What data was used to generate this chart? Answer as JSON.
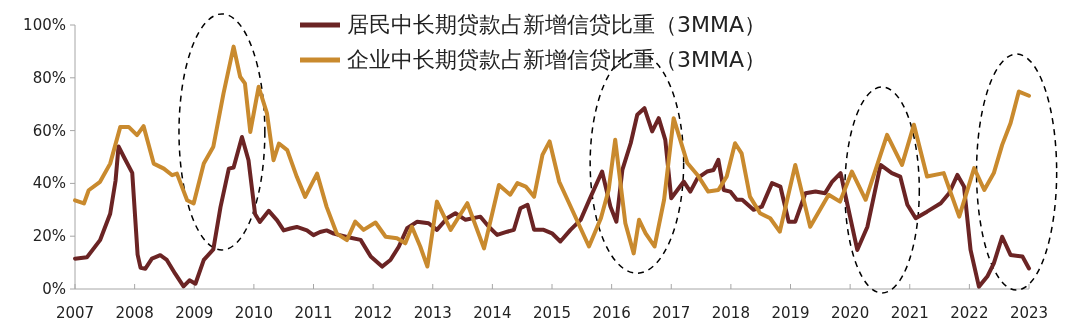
{
  "chart_data": {
    "type": "line",
    "xlim": [
      2007,
      2023
    ],
    "xticks": [
      2007,
      2008,
      2009,
      2010,
      2011,
      2012,
      2013,
      2014,
      2015,
      2016,
      2017,
      2018,
      2019,
      2020,
      2021,
      2022,
      2023
    ],
    "ylim": [
      0,
      100
    ],
    "yticks": [
      {
        "value": 0,
        "label": "0%"
      },
      {
        "value": 20,
        "label": "20%"
      },
      {
        "value": 40,
        "label": "40%"
      },
      {
        "value": 60,
        "label": "60%"
      },
      {
        "value": 80,
        "label": "80%"
      },
      {
        "value": 100,
        "label": "100%"
      }
    ],
    "legend": "top",
    "grid": false,
    "marker": "none",
    "line_style": "solid",
    "series": [
      {
        "name": "居民中长期贷款占新增信贷比重（3MMA）",
        "color": "#6b2424",
        "x": [
          2007.0,
          2007.2,
          2007.42,
          2007.59,
          2007.68,
          2007.73,
          2007.82,
          2007.96,
          2008.05,
          2008.1,
          2008.18,
          2008.29,
          2008.43,
          2008.54,
          2008.68,
          2008.82,
          2008.92,
          2009.02,
          2009.16,
          2009.32,
          2009.44,
          2009.58,
          2009.66,
          2009.8,
          2009.91,
          2010.02,
          2010.1,
          2010.25,
          2010.39,
          2010.5,
          2010.61,
          2010.72,
          2010.89,
          2011.0,
          2011.11,
          2011.22,
          2011.34,
          2011.56,
          2011.79,
          2011.96,
          2012.15,
          2012.29,
          2012.43,
          2012.57,
          2012.74,
          2012.93,
          2013.07,
          2013.24,
          2013.38,
          2013.55,
          2013.8,
          2013.94,
          2014.08,
          2014.25,
          2014.36,
          2014.47,
          2014.59,
          2014.7,
          2014.86,
          2015.0,
          2015.14,
          2015.31,
          2015.48,
          2015.65,
          2015.84,
          2015.98,
          2016.08,
          2016.18,
          2016.32,
          2016.43,
          2016.55,
          2016.68,
          2016.79,
          2016.9,
          2017.0,
          2017.21,
          2017.32,
          2017.44,
          2017.6,
          2017.71,
          2017.79,
          2017.88,
          2017.99,
          2018.1,
          2018.19,
          2018.38,
          2018.52,
          2018.69,
          2018.83,
          2018.97,
          2019.08,
          2019.25,
          2019.42,
          2019.58,
          2019.7,
          2019.84,
          2019.95,
          2020.12,
          2020.29,
          2020.51,
          2020.7,
          2020.84,
          2020.96,
          2021.1,
          2021.29,
          2021.52,
          2021.66,
          2021.8,
          2021.91,
          2022.02,
          2022.16,
          2022.3,
          2022.41,
          2022.55,
          2022.69,
          2022.89,
          2023.0
        ],
        "values": [
          11.5,
          12,
          18.5,
          28.5,
          41,
          54,
          50,
          44,
          13,
          8,
          7.7,
          11.5,
          12.8,
          11,
          5.8,
          1,
          3.3,
          2,
          11,
          15,
          31,
          45.6,
          46,
          57.6,
          48.8,
          28.4,
          25.4,
          29.6,
          26,
          22.2,
          22.9,
          23.5,
          22.2,
          20.4,
          21.6,
          22.2,
          21,
          19.7,
          18.6,
          12.3,
          8.5,
          11,
          16,
          23,
          25.5,
          24.9,
          22.4,
          26.8,
          28.7,
          26.2,
          27.4,
          23.6,
          20.5,
          21.7,
          22.4,
          30.6,
          31.9,
          22.4,
          22.4,
          21.1,
          18,
          22.4,
          26.2,
          35,
          44.5,
          31.2,
          25.5,
          45.1,
          55.2,
          66,
          68.5,
          59.7,
          64.7,
          56.5,
          34.4,
          40.7,
          36.9,
          42,
          44.5,
          45.1,
          48.9,
          37.5,
          36.9,
          33.8,
          33.8,
          30,
          31.2,
          40.1,
          38.8,
          25.5,
          25.5,
          36.3,
          36.9,
          36.3,
          40.7,
          43.9,
          32.5,
          14.8,
          23.6,
          47,
          43.9,
          42.6,
          31.9,
          26.8,
          29.3,
          32.5,
          36.3,
          43.2,
          38.8,
          14.8,
          0.9,
          4.7,
          9.7,
          19.8,
          12.9,
          12.3,
          7.8
        ]
      },
      {
        "name": "企业中长期贷款占新增信贷比重（3MMA）",
        "color": "#c98a2e",
        "x": [
          2007.0,
          2007.15,
          2007.23,
          2007.42,
          2007.59,
          2007.76,
          2007.9,
          2008.04,
          2008.15,
          2008.32,
          2008.49,
          2008.63,
          2008.71,
          2008.88,
          2008.99,
          2009.16,
          2009.32,
          2009.49,
          2009.66,
          2009.77,
          2009.85,
          2009.94,
          2010.08,
          2010.22,
          2010.33,
          2010.42,
          2010.56,
          2010.72,
          2010.86,
          2011.06,
          2011.22,
          2011.39,
          2011.56,
          2011.7,
          2011.84,
          2012.04,
          2012.21,
          2012.4,
          2012.54,
          2012.65,
          2012.79,
          2012.91,
          2013.07,
          2013.3,
          2013.58,
          2013.86,
          2014.11,
          2014.3,
          2014.42,
          2014.56,
          2014.7,
          2014.84,
          2014.96,
          2015.12,
          2015.26,
          2015.62,
          2015.82,
          2015.95,
          2016.06,
          2016.23,
          2016.37,
          2016.46,
          2016.57,
          2016.72,
          2016.88,
          2017.04,
          2017.27,
          2017.44,
          2017.62,
          2017.79,
          2017.93,
          2018.07,
          2018.18,
          2018.32,
          2018.49,
          2018.66,
          2018.82,
          2019.08,
          2019.33,
          2019.64,
          2019.83,
          2020.03,
          2020.26,
          2020.62,
          2020.87,
          2021.07,
          2021.29,
          2021.57,
          2021.83,
          2022.08,
          2022.25,
          2022.41,
          2022.55,
          2022.69,
          2022.83,
          2023.0
        ],
        "values": [
          33.6,
          32.4,
          37.4,
          40.6,
          47.5,
          61.4,
          61.4,
          58.3,
          61.7,
          47.5,
          45.6,
          43.1,
          43.7,
          33.6,
          32.4,
          47.5,
          53.9,
          74,
          91.8,
          80.4,
          77.9,
          59.5,
          76.6,
          66.5,
          48.8,
          55.1,
          52.6,
          42.5,
          34.9,
          43.7,
          31.1,
          21,
          18.5,
          25.5,
          22.4,
          25.2,
          19.8,
          19.2,
          17.3,
          23.6,
          16.1,
          8.5,
          33.1,
          22.4,
          32.5,
          15.4,
          39.4,
          35.7,
          40.1,
          38.8,
          35,
          50.8,
          55.9,
          40.7,
          33.8,
          16.1,
          26.8,
          37.5,
          56.5,
          24.9,
          13.5,
          26.2,
          21.1,
          16.1,
          33.8,
          64.7,
          47.7,
          43.2,
          36.9,
          37.5,
          42.6,
          55.2,
          51.4,
          35,
          28.7,
          26.8,
          21.7,
          47,
          23.6,
          35.7,
          33.1,
          44.5,
          33.8,
          58.4,
          47,
          62.2,
          42.6,
          43.9,
          27.4,
          45.8,
          37.5,
          43.9,
          54.6,
          62.8,
          74.8,
          73.2
        ]
      }
    ]
  }
}
